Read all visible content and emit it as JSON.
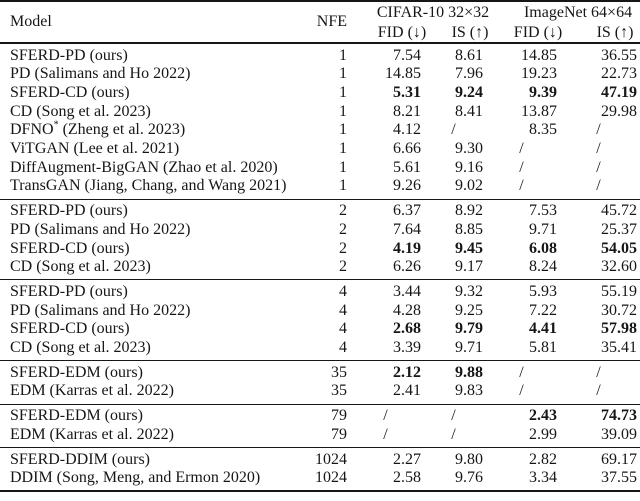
{
  "colors": {
    "text": "#161616",
    "rule": "#161616",
    "background": "#ffffff"
  },
  "table": {
    "header": {
      "model": "Model",
      "nfe": "NFE",
      "cifar_group": "CIFAR-10 32×32",
      "imagenet_group": "ImageNet 64×64",
      "fid": "FID (↓)",
      "is": "IS (↑)"
    },
    "groups": [
      {
        "nfe": "1",
        "rows": [
          {
            "model": "SFERD-PD (ours)",
            "nfe": "1",
            "c_fid": "7.54",
            "c_is": "8.61",
            "i_fid": "14.85",
            "i_is": "36.55",
            "bold": []
          },
          {
            "model": "PD (Salimans and Ho 2022)",
            "nfe": "1",
            "c_fid": "14.85",
            "c_is": "7.96",
            "i_fid": "19.23",
            "i_is": "22.73",
            "bold": []
          },
          {
            "model": "SFERD-CD (ours)",
            "nfe": "1",
            "c_fid": "5.31",
            "c_is": "9.24",
            "i_fid": "9.39",
            "i_is": "47.19",
            "bold": [
              "c_fid",
              "c_is",
              "i_fid",
              "i_is"
            ]
          },
          {
            "model": "CD (Song et al. 2023)",
            "nfe": "1",
            "c_fid": "8.21",
            "c_is": "8.41",
            "i_fid": "13.87",
            "i_is": "29.98",
            "bold": []
          },
          {
            "model": "DFNO* (Zheng et al. 2023)",
            "nfe": "1",
            "c_fid": "4.12",
            "c_is": "/",
            "i_fid": "8.35",
            "i_is": "/",
            "bold": []
          },
          {
            "model": "ViTGAN (Lee et al. 2021)",
            "nfe": "1",
            "c_fid": "6.66",
            "c_is": "9.30",
            "i_fid": "/",
            "i_is": "/",
            "bold": []
          },
          {
            "model": "DiffAugment-BigGAN (Zhao et al. 2020)",
            "nfe": "1",
            "c_fid": "5.61",
            "c_is": "9.16",
            "i_fid": "/",
            "i_is": "/",
            "bold": []
          },
          {
            "model": "TransGAN (Jiang, Chang, and Wang 2021)",
            "nfe": "1",
            "c_fid": "9.26",
            "c_is": "9.02",
            "i_fid": "/",
            "i_is": "/",
            "bold": []
          }
        ]
      },
      {
        "nfe": "2",
        "rows": [
          {
            "model": "SFERD-PD (ours)",
            "nfe": "2",
            "c_fid": "6.37",
            "c_is": "8.92",
            "i_fid": "7.53",
            "i_is": "45.72",
            "bold": []
          },
          {
            "model": "PD (Salimans and Ho 2022)",
            "nfe": "2",
            "c_fid": "7.64",
            "c_is": "8.85",
            "i_fid": "9.71",
            "i_is": "25.37",
            "bold": []
          },
          {
            "model": "SFERD-CD (ours)",
            "nfe": "2",
            "c_fid": "4.19",
            "c_is": "9.45",
            "i_fid": "6.08",
            "i_is": "54.05",
            "bold": [
              "c_fid",
              "c_is",
              "i_fid",
              "i_is"
            ]
          },
          {
            "model": "CD (Song et al. 2023)",
            "nfe": "2",
            "c_fid": "6.26",
            "c_is": "9.17",
            "i_fid": "8.24",
            "i_is": "32.60",
            "bold": []
          }
        ]
      },
      {
        "nfe": "4",
        "rows": [
          {
            "model": "SFERD-PD (ours)",
            "nfe": "4",
            "c_fid": "3.44",
            "c_is": "9.32",
            "i_fid": "5.93",
            "i_is": "55.19",
            "bold": []
          },
          {
            "model": "PD (Salimans and Ho 2022)",
            "nfe": "4",
            "c_fid": "4.28",
            "c_is": "9.25",
            "i_fid": "7.22",
            "i_is": "30.72",
            "bold": []
          },
          {
            "model": "SFERD-CD (ours)",
            "nfe": "4",
            "c_fid": "2.68",
            "c_is": "9.79",
            "i_fid": "4.41",
            "i_is": "57.98",
            "bold": [
              "c_fid",
              "c_is",
              "i_fid",
              "i_is"
            ]
          },
          {
            "model": "CD (Song et al. 2023)",
            "nfe": "4",
            "c_fid": "3.39",
            "c_is": "9.71",
            "i_fid": "5.81",
            "i_is": "35.41",
            "bold": []
          }
        ]
      },
      {
        "nfe": "35",
        "rows": [
          {
            "model": "SFERD-EDM (ours)",
            "nfe": "35",
            "c_fid": "2.12",
            "c_is": "9.88",
            "i_fid": "/",
            "i_is": "/",
            "bold": [
              "c_fid",
              "c_is"
            ]
          },
          {
            "model": "EDM (Karras et al. 2022)",
            "nfe": "35",
            "c_fid": "2.41",
            "c_is": "9.83",
            "i_fid": "/",
            "i_is": "/",
            "bold": []
          }
        ]
      },
      {
        "nfe": "79",
        "rows": [
          {
            "model": "SFERD-EDM (ours)",
            "nfe": "79",
            "c_fid": "/",
            "c_is": "/",
            "i_fid": "2.43",
            "i_is": "74.73",
            "bold": [
              "i_fid",
              "i_is"
            ]
          },
          {
            "model": "EDM (Karras et al. 2022)",
            "nfe": "79",
            "c_fid": "/",
            "c_is": "/",
            "i_fid": "2.99",
            "i_is": "39.09",
            "bold": []
          }
        ]
      },
      {
        "nfe": "1024",
        "rows": [
          {
            "model": "SFERD-DDIM (ours)",
            "nfe": "1024",
            "c_fid": "2.27",
            "c_is": "9.80",
            "i_fid": "2.82",
            "i_is": "69.17",
            "bold": []
          },
          {
            "model": "DDIM (Song, Meng, and Ermon 2020)",
            "nfe": "1024",
            "c_fid": "2.58",
            "c_is": "9.76",
            "i_fid": "3.34",
            "i_is": "37.55",
            "bold": []
          }
        ]
      }
    ]
  }
}
